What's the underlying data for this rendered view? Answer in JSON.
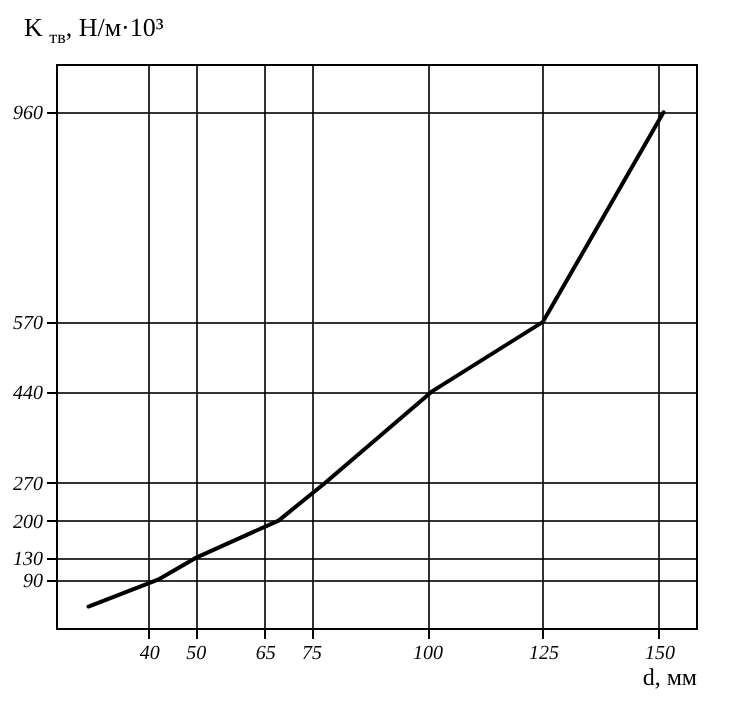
{
  "chart_data": {
    "type": "line",
    "xlabel": "d, мм",
    "ylabel": "K $_{тв}$, Н/м·10³",
    "x": [
      27,
      42,
      50,
      68,
      78,
      101,
      125,
      151
    ],
    "series": [
      {
        "color": "#000000",
        "values": [
          40,
          90,
          130,
          200,
          270,
          440,
          570,
          960
        ]
      }
    ],
    "xlim": [
      20,
      158
    ],
    "ylim": [
      0,
      1050
    ],
    "xticks": [
      40,
      50,
      65,
      75,
      100,
      125,
      150
    ],
    "yticks": [
      90,
      130,
      200,
      270,
      440,
      570,
      960
    ],
    "grid": true,
    "legend": false,
    "marker": "none",
    "line_style": "solid"
  }
}
